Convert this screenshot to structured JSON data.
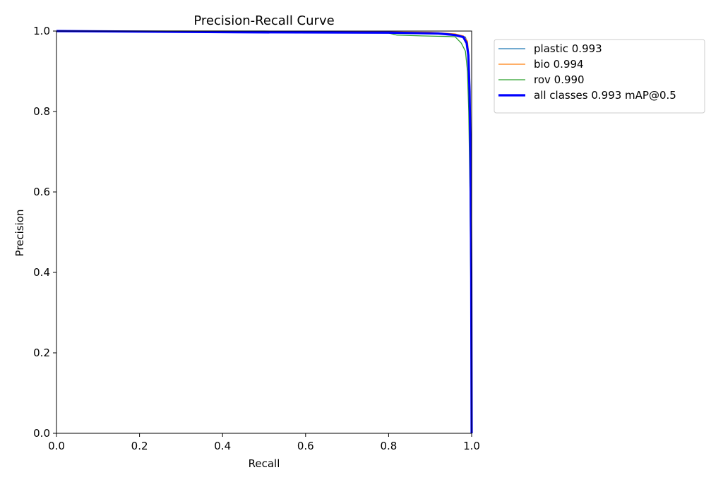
{
  "chart_data": {
    "type": "line",
    "title": "Precision-Recall Curve",
    "xlabel": "Recall",
    "ylabel": "Precision",
    "xlim": [
      0,
      1
    ],
    "ylim": [
      0,
      1
    ],
    "xticks": [
      "0.0",
      "0.2",
      "0.4",
      "0.6",
      "0.8",
      "1.0"
    ],
    "yticks": [
      "0.0",
      "0.2",
      "0.4",
      "0.6",
      "0.8",
      "1.0"
    ],
    "grid": false,
    "legend_position": "outside top-right",
    "series": [
      {
        "name": "plastic 0.993",
        "color": "#1f77b4",
        "width": "thin",
        "x": [
          0,
          0.3,
          0.6,
          0.85,
          0.93,
          0.97,
          0.985,
          0.99,
          0.993,
          0.995,
          0.997,
          0.999,
          1.0
        ],
        "y": [
          1.0,
          1.0,
          0.998,
          0.996,
          0.994,
          0.99,
          0.985,
          0.97,
          0.93,
          0.86,
          0.7,
          0.4,
          0.0
        ]
      },
      {
        "name": "bio 0.994",
        "color": "#ff7f0e",
        "width": "thin",
        "x": [
          0,
          0.4,
          0.7,
          0.9,
          0.96,
          0.98,
          0.99,
          0.994,
          0.996,
          0.998,
          0.999,
          1.0
        ],
        "y": [
          1.0,
          1.0,
          0.999,
          0.997,
          0.993,
          0.988,
          0.975,
          0.93,
          0.85,
          0.7,
          0.45,
          0.0
        ]
      },
      {
        "name": "rov 0.990",
        "color": "#2ca02c",
        "width": "thin",
        "x": [
          0,
          0.5,
          0.8,
          0.82,
          0.88,
          0.96,
          0.975,
          0.985,
          0.99,
          0.993,
          0.996,
          0.998,
          1.0
        ],
        "y": [
          1.0,
          1.0,
          0.995,
          0.99,
          0.988,
          0.986,
          0.97,
          0.95,
          0.9,
          0.8,
          0.6,
          0.35,
          0.0
        ]
      },
      {
        "name": "all classes 0.993 mAP@0.5",
        "color": "#0000ff",
        "width": "thick",
        "x": [
          0,
          0.43,
          0.8,
          0.92,
          0.96,
          0.98,
          0.988,
          0.992,
          0.995,
          0.997,
          0.999,
          1.0
        ],
        "y": [
          1.0,
          0.997,
          0.996,
          0.994,
          0.99,
          0.985,
          0.97,
          0.94,
          0.85,
          0.7,
          0.4,
          0.0
        ]
      }
    ]
  }
}
